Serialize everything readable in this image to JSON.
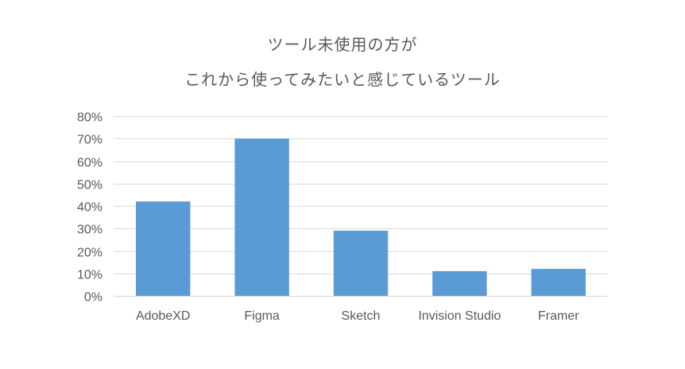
{
  "chart_data": {
    "type": "bar",
    "title_lines": [
      "ツール未使用の方が",
      "これから使ってみたいと感じているツール"
    ],
    "categories": [
      "AdobeXD",
      "Figma",
      "Sketch",
      "Invision Studio",
      "Framer"
    ],
    "values": [
      42,
      70,
      29,
      11,
      12
    ],
    "ylim": [
      0,
      80
    ],
    "y_ticks": [
      "0%",
      "10%",
      "20%",
      "30%",
      "40%",
      "50%",
      "60%",
      "70%",
      "80%"
    ],
    "grid": true,
    "bar_color": "#5B9BD5",
    "grid_color": "#D9D9D9"
  }
}
